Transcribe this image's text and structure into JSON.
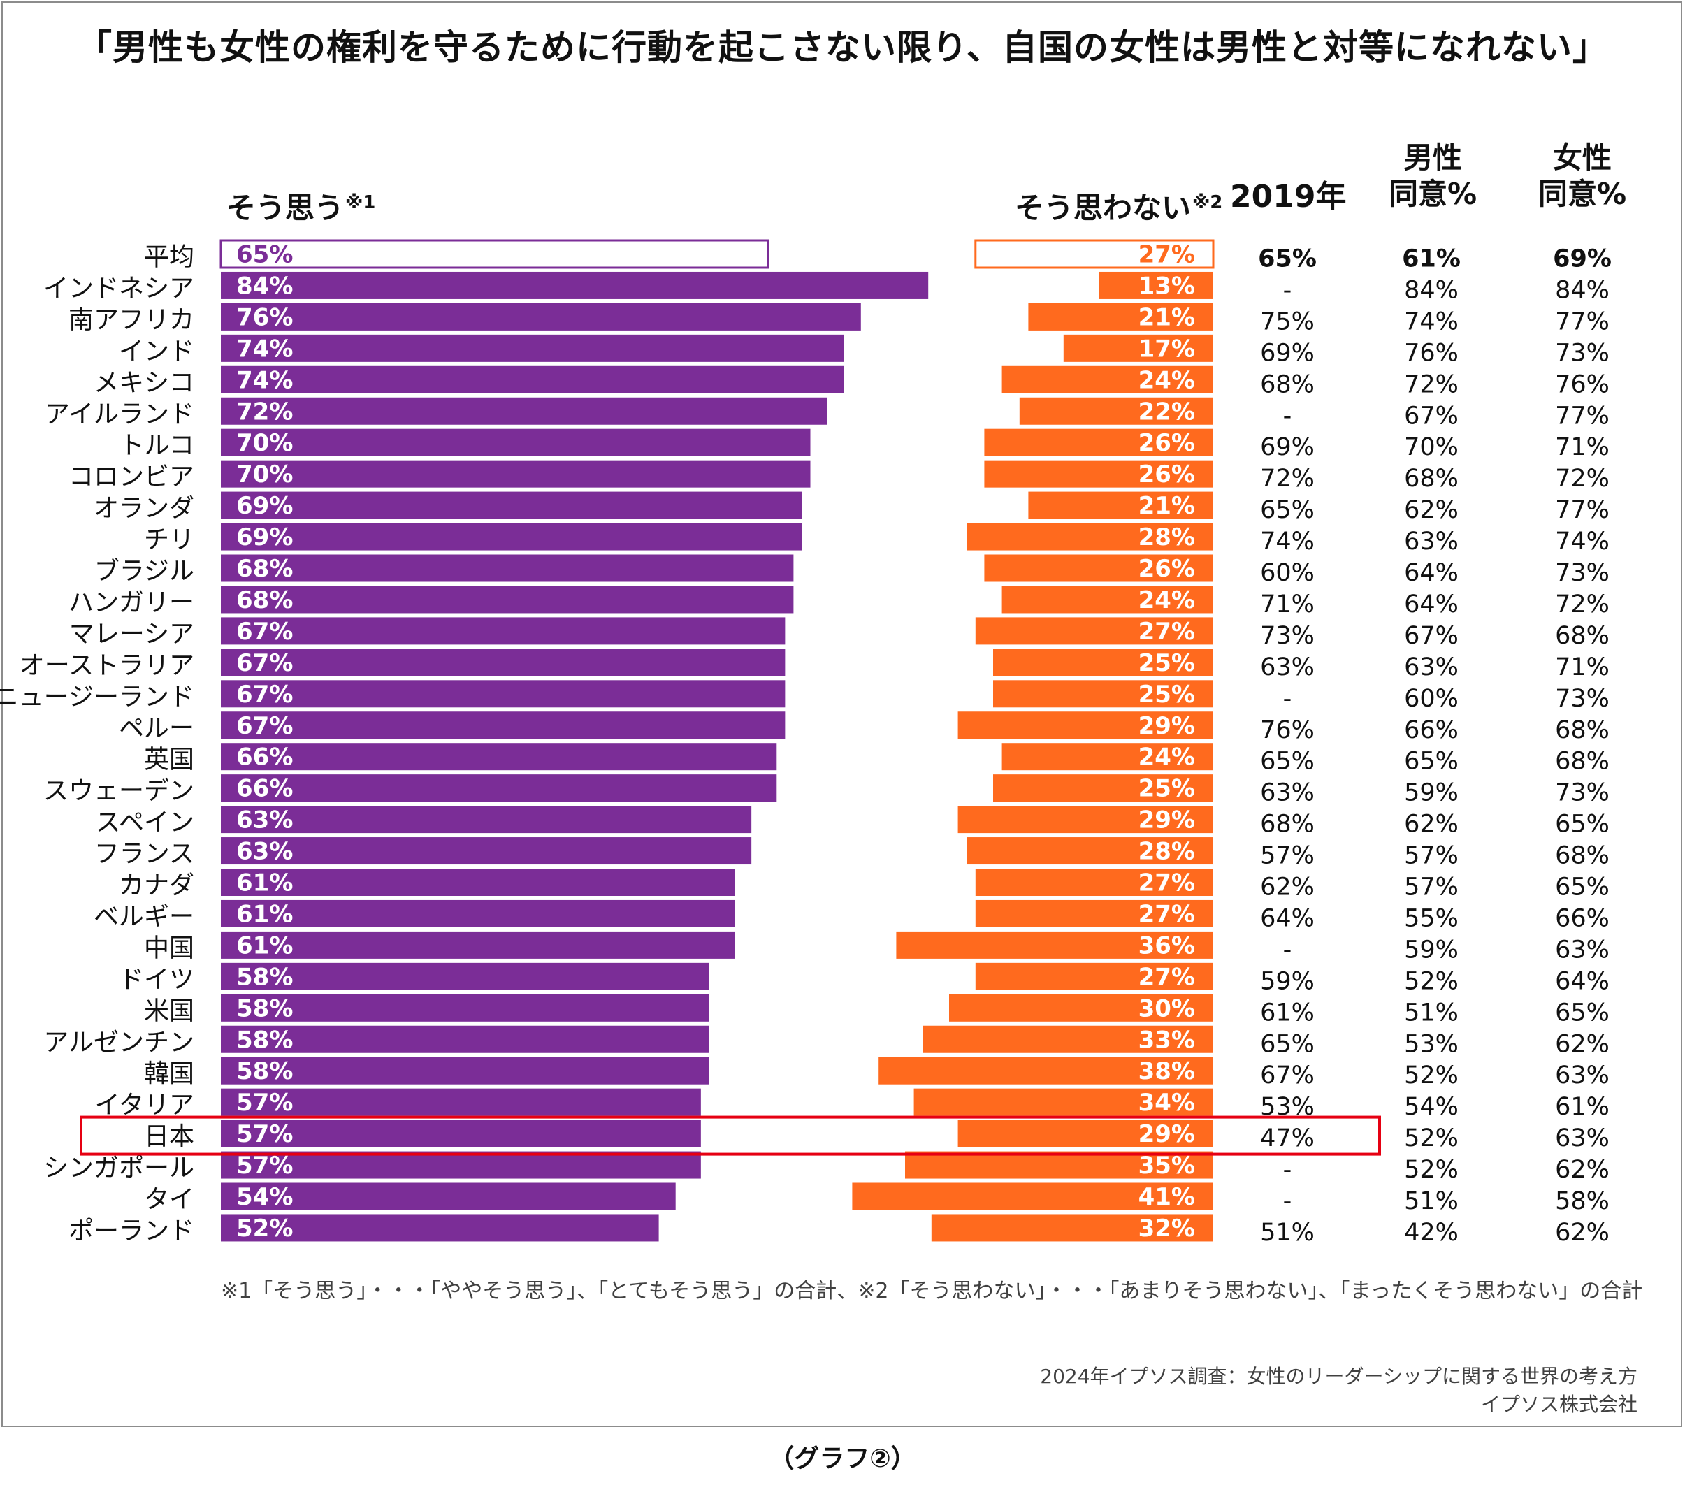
{
  "title": "「男性も女性の権利を守るために行動を起こさない限り、自国の女性は男性と対等になれない」",
  "headers": {
    "agree": "そう思う",
    "agree_note": "※1",
    "disagree": "そう思わない",
    "disagree_note": "※2",
    "y2019": "2019年",
    "male_line1": "男性",
    "male_line2": "同意%",
    "female_line1": "女性",
    "female_line2": "同意%"
  },
  "footnote": "※1「そう思う」・・・「ややそう思う」、「とてもそう思う」の合計、※2「そう思わない」・・・「あまりそう思わない」、「まったくそう思わない」の合計",
  "source_line1": "2024年イプソス調査：女性のリーダーシップに関する世界の考え方",
  "source_line2": "イプソス株式会社",
  "caption": "（グラフ②）",
  "colors": {
    "agree": "#7B2D97",
    "disagree": "#FF6A1E",
    "highlight": "#E60012"
  },
  "chart_data": {
    "type": "bar",
    "orientation": "horizontal diverging",
    "categories": [
      "平均",
      "インドネシア",
      "南アフリカ",
      "インド",
      "メキシコ",
      "アイルランド",
      "トルコ",
      "コロンビア",
      "オランダ",
      "チリ",
      "ブラジル",
      "ハンガリー",
      "マレーシア",
      "オーストラリア",
      "ニュージーランド",
      "ペルー",
      "英国",
      "スウェーデン",
      "スペイン",
      "フランス",
      "カナダ",
      "ベルギー",
      "中国",
      "ドイツ",
      "米国",
      "アルゼンチン",
      "韓国",
      "イタリア",
      "日本",
      "シンガポール",
      "タイ",
      "ポーランド"
    ],
    "series": [
      {
        "name": "そう思う",
        "values": [
          65,
          84,
          76,
          74,
          74,
          72,
          70,
          70,
          69,
          69,
          68,
          68,
          67,
          67,
          67,
          67,
          66,
          66,
          63,
          63,
          61,
          61,
          61,
          58,
          58,
          58,
          58,
          57,
          57,
          57,
          54,
          52
        ]
      },
      {
        "name": "そう思わない",
        "values": [
          27,
          13,
          21,
          17,
          24,
          22,
          26,
          26,
          21,
          28,
          26,
          24,
          27,
          25,
          25,
          29,
          24,
          25,
          29,
          28,
          27,
          27,
          36,
          27,
          30,
          33,
          38,
          34,
          29,
          35,
          41,
          32
        ]
      }
    ],
    "table_columns": [
      {
        "name": "2019年",
        "values": [
          "65%",
          "-",
          "75%",
          "69%",
          "68%",
          "-",
          "69%",
          "72%",
          "65%",
          "74%",
          "60%",
          "71%",
          "73%",
          "63%",
          "-",
          "76%",
          "65%",
          "63%",
          "68%",
          "57%",
          "62%",
          "64%",
          "-",
          "59%",
          "61%",
          "65%",
          "67%",
          "53%",
          "47%",
          "-",
          "-",
          "51%"
        ]
      },
      {
        "name": "男性 同意%",
        "values": [
          "61%",
          "84%",
          "74%",
          "76%",
          "72%",
          "67%",
          "70%",
          "68%",
          "62%",
          "63%",
          "64%",
          "64%",
          "67%",
          "63%",
          "60%",
          "66%",
          "65%",
          "59%",
          "62%",
          "57%",
          "57%",
          "55%",
          "59%",
          "52%",
          "51%",
          "53%",
          "52%",
          "54%",
          "52%",
          "52%",
          "51%",
          "42%"
        ]
      },
      {
        "name": "女性 同意%",
        "values": [
          "69%",
          "84%",
          "77%",
          "73%",
          "76%",
          "77%",
          "71%",
          "72%",
          "77%",
          "74%",
          "73%",
          "72%",
          "68%",
          "71%",
          "73%",
          "68%",
          "68%",
          "73%",
          "65%",
          "68%",
          "65%",
          "66%",
          "63%",
          "64%",
          "65%",
          "62%",
          "63%",
          "61%",
          "63%",
          "62%",
          "58%",
          "62%"
        ]
      }
    ],
    "outlined_row": "平均",
    "highlighted_row": "日本",
    "grid": false
  }
}
